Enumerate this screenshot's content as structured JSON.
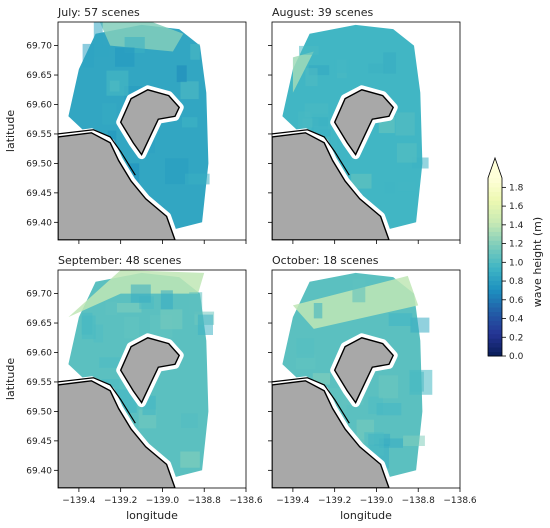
{
  "chart_data": {
    "type": "heatmap",
    "xlabel": "longitude",
    "ylabel": "latitude",
    "xlim": [
      -139.5,
      -138.6
    ],
    "ylim": [
      69.37,
      69.74
    ],
    "xticks": [
      -139.4,
      -139.2,
      -139.0,
      -138.8,
      -138.6
    ],
    "xtick_labels": [
      "−139.4",
      "−139.2",
      "−139.0",
      "−138.8",
      "−138.6"
    ],
    "yticks": [
      69.4,
      69.45,
      69.5,
      69.55,
      69.6,
      69.65,
      69.7
    ],
    "ytick_labels": [
      "69.40",
      "69.45",
      "69.50",
      "69.55",
      "69.60",
      "69.65",
      "69.70"
    ],
    "panels": [
      {
        "title": "July: 57 scenes",
        "mean_wave_height_m": 0.85
      },
      {
        "title": "August: 39 scenes",
        "mean_wave_height_m": 0.95
      },
      {
        "title": "September: 48 scenes",
        "mean_wave_height_m": 1.05
      },
      {
        "title": "October: 18 scenes",
        "mean_wave_height_m": 1.05
      }
    ],
    "colorbar": {
      "label": "wave height (m)",
      "min": 0.0,
      "max": 1.9,
      "ticks": [
        0.0,
        0.2,
        0.4,
        0.6,
        0.8,
        1.0,
        1.2,
        1.4,
        1.6,
        1.8
      ],
      "tick_labels": [
        "0.0",
        "0.2",
        "0.4",
        "0.6",
        "0.8",
        "1.0",
        "1.2",
        "1.4",
        "1.6",
        "1.8"
      ],
      "colormap": "YlGnBu_r",
      "extend": "max"
    }
  },
  "colors": {
    "land": "#a8a8a8",
    "coast": "#000000",
    "background": "#ffffff"
  }
}
